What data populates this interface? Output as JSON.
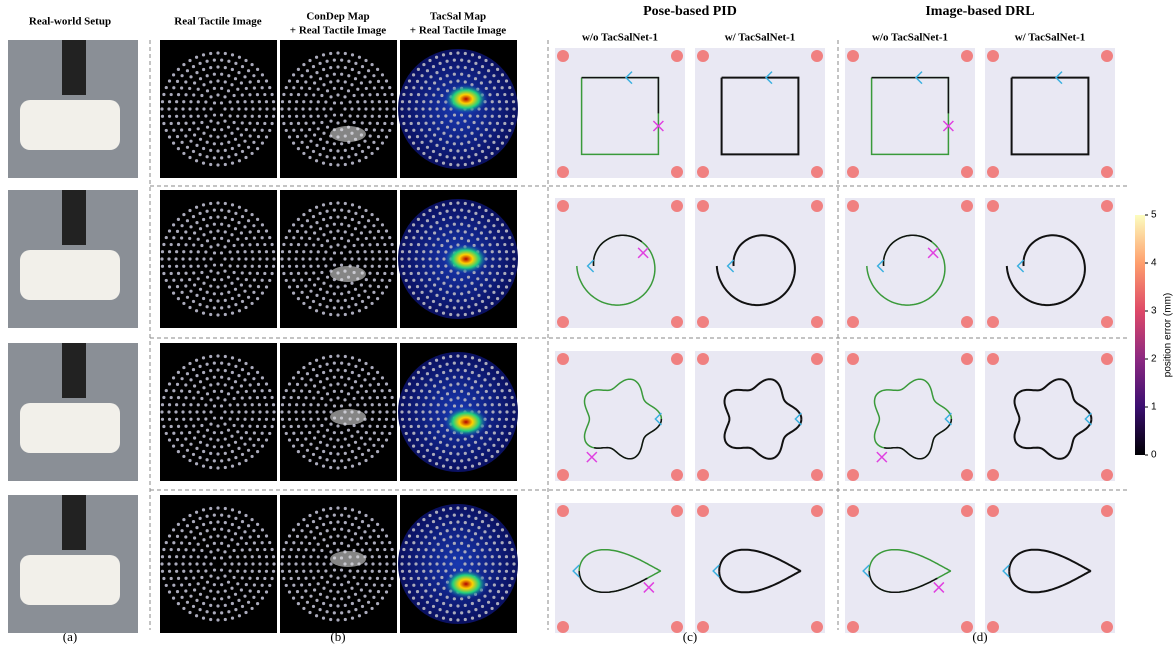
{
  "column_headers": {
    "setup": "Real-world Setup",
    "tactile": "Real Tactile Image",
    "condep": [
      "ConDep Map",
      "+ Real Tactile Image"
    ],
    "tacsal": [
      "TacSal Map",
      "+ Real Tactile Image"
    ]
  },
  "groups": [
    {
      "title": "Pose-based PID",
      "columns": [
        "w/o TacSalNet-1",
        "w/ TacSalNet-1"
      ]
    },
    {
      "title": "Image-based DRL",
      "columns": [
        "w/o TacSalNet-1",
        "w/ TacSalNet-1"
      ]
    }
  ],
  "panel_labels": [
    "(a)",
    "(b)",
    "(c)",
    "(d)"
  ],
  "colorbar": {
    "label": "position error (mm)",
    "lim": [
      0,
      5
    ],
    "ticks": [
      0,
      1,
      2,
      3,
      4,
      5
    ]
  }
}
